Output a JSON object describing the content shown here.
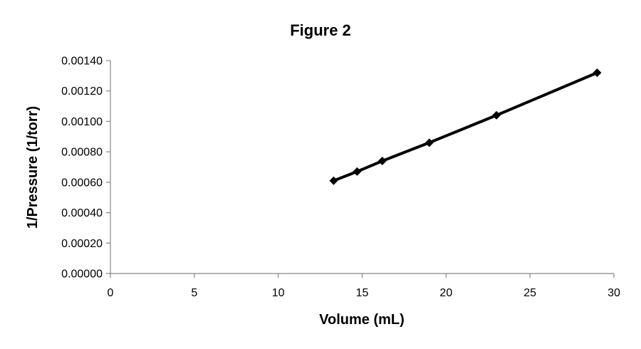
{
  "chart_data": {
    "type": "scatter",
    "title": "Figure 2",
    "xlabel": "Volume (mL)",
    "ylabel": "1/Pressure (1/torr)",
    "xlim": [
      0,
      30
    ],
    "ylim": [
      0,
      0.0014
    ],
    "x_ticks": [
      "0",
      "5",
      "10",
      "15",
      "20",
      "25",
      "30"
    ],
    "y_ticks": [
      "0.00000",
      "0.00020",
      "0.00040",
      "0.00060",
      "0.00080",
      "0.00100",
      "0.00120",
      "0.00140"
    ],
    "grid": false,
    "legend": "none",
    "line_color": "#000000",
    "marker": "diamond",
    "series": [
      {
        "x": [
          13.3,
          14.7,
          16.2,
          19.0,
          23.0,
          29.0
        ],
        "y": [
          0.00061,
          0.00067,
          0.00074,
          0.00086,
          0.00104,
          0.00132
        ]
      }
    ]
  }
}
